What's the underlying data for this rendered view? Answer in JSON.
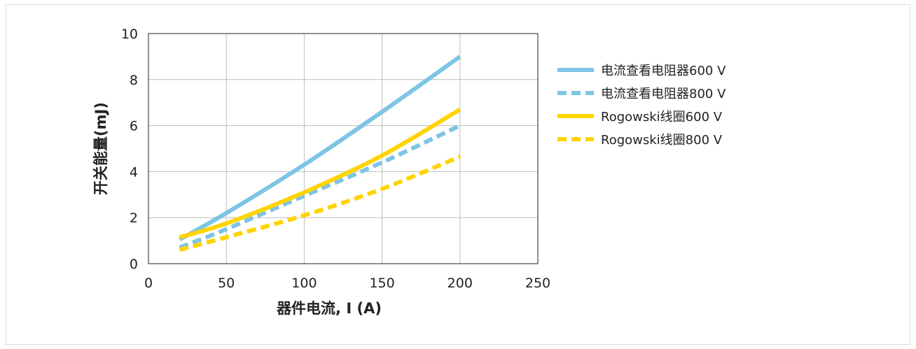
{
  "chart_data": {
    "type": "line",
    "xlabel": "器件电流, I (A)",
    "ylabel": "开关能量(mJ)",
    "xlim": [
      0,
      250
    ],
    "ylim": [
      0,
      10
    ],
    "xticks": [
      0,
      50,
      100,
      150,
      200,
      250
    ],
    "yticks": [
      0,
      2,
      4,
      6,
      8,
      10
    ],
    "grid": true,
    "legend_position": "right",
    "series": [
      {
        "name": "电流查看电阻器600 V",
        "color": "#7ec4e4",
        "dashed": false,
        "x": [
          20,
          50,
          100,
          150,
          200
        ],
        "y": [
          1.05,
          2.2,
          4.3,
          6.6,
          9.0
        ]
      },
      {
        "name": "电流查看电阻器800 V",
        "color": "#7ec4e4",
        "dashed": true,
        "x": [
          20,
          50,
          100,
          150,
          200
        ],
        "y": [
          0.7,
          1.5,
          2.95,
          4.4,
          6.0
        ]
      },
      {
        "name": "Rogowski线圈600 V",
        "color": "#ffd400",
        "dashed": false,
        "x": [
          20,
          50,
          100,
          150,
          200
        ],
        "y": [
          1.15,
          1.75,
          3.1,
          4.7,
          6.7
        ]
      },
      {
        "name": "Rogowski线圈800 V",
        "color": "#ffd400",
        "dashed": true,
        "x": [
          20,
          50,
          100,
          150,
          200
        ],
        "y": [
          0.6,
          1.15,
          2.1,
          3.25,
          4.65
        ]
      }
    ]
  }
}
